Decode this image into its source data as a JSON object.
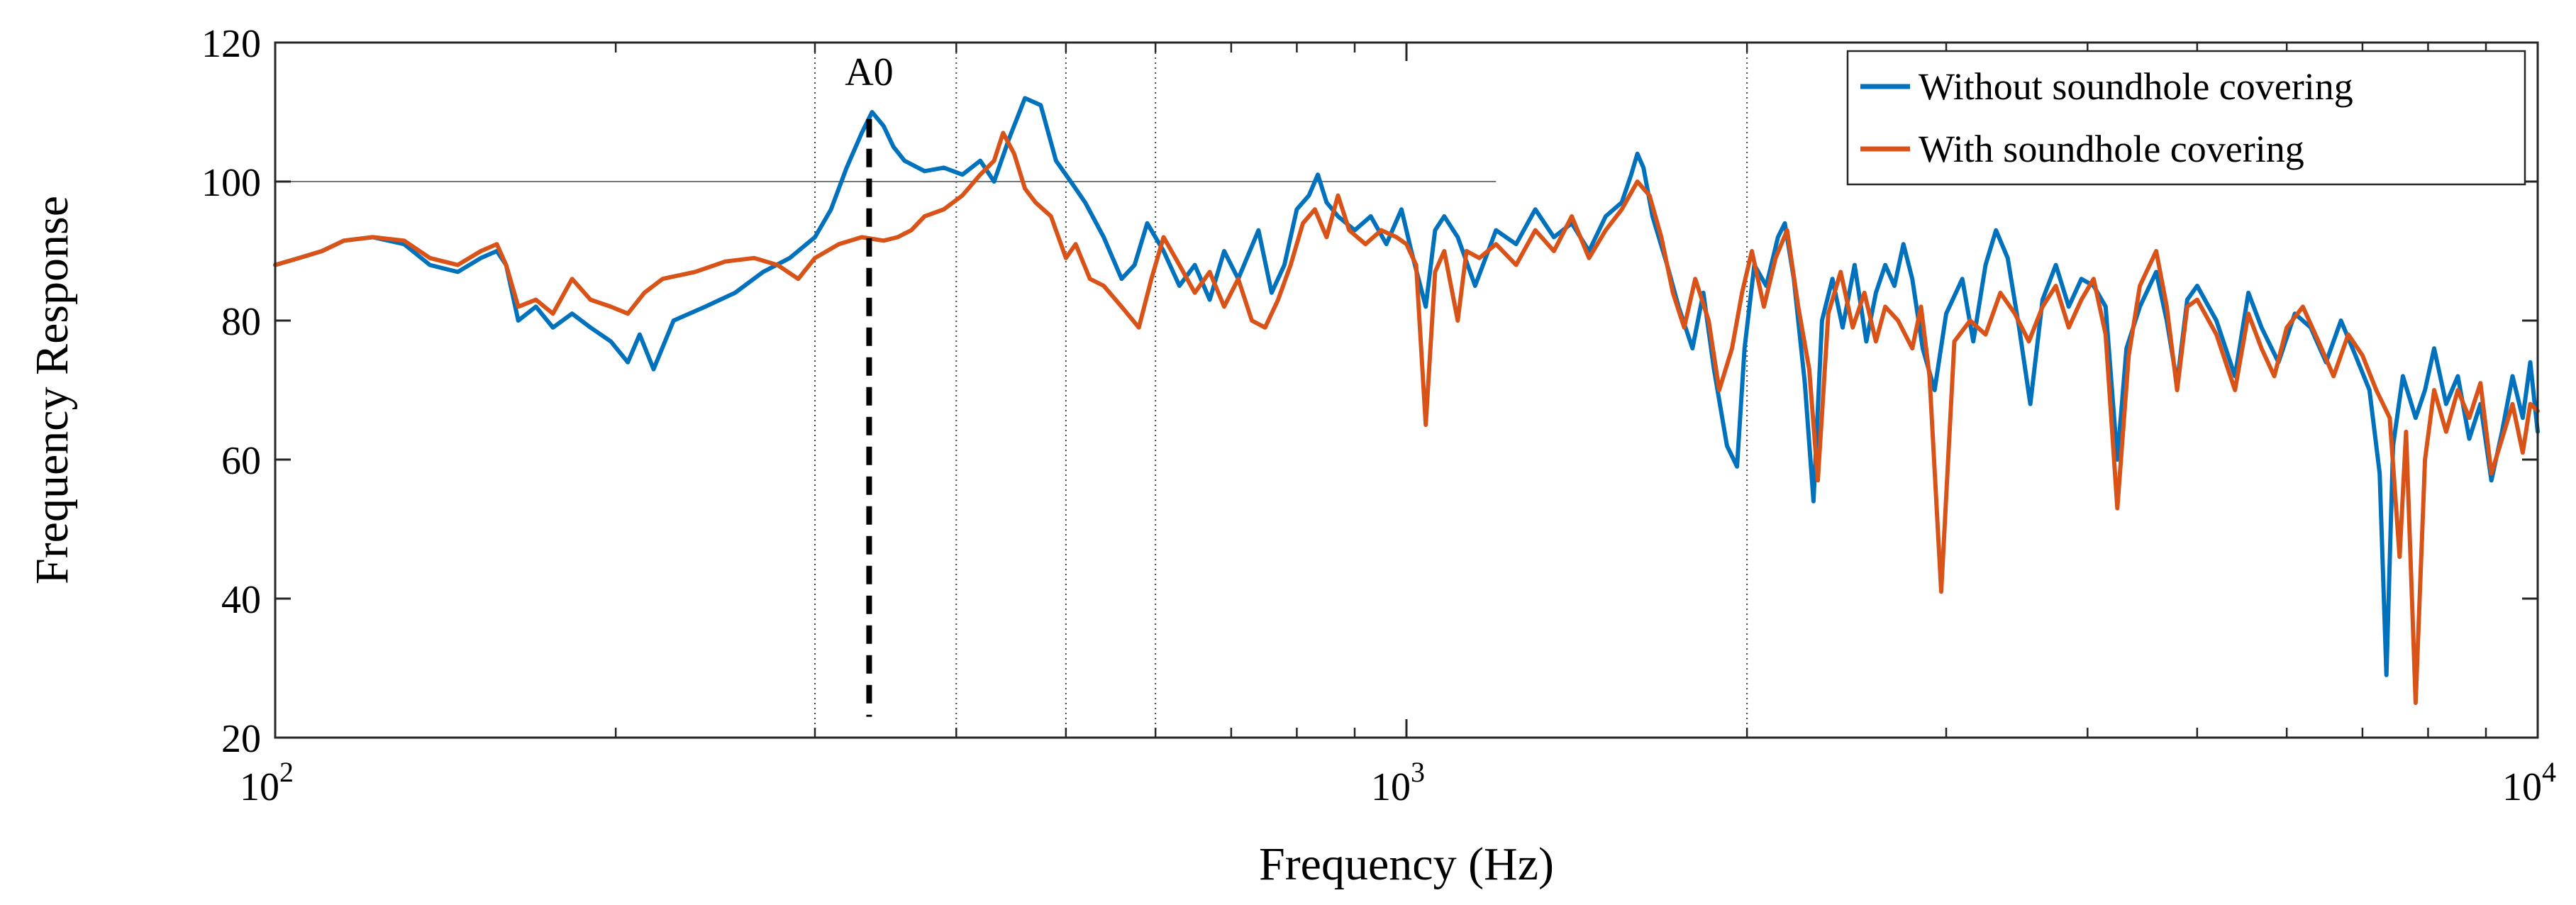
{
  "chart_data": {
    "type": "line",
    "title": "",
    "xlabel": "Frequency (Hz)",
    "ylabel": "Frequency Response",
    "xscale": "log",
    "xlim": [
      100,
      10000
    ],
    "ylim": [
      20,
      120
    ],
    "grid": false,
    "legend_position": "top-right",
    "x_ticks": [
      {
        "value": 100,
        "base": "10",
        "exp": "2"
      },
      {
        "value": 1000,
        "base": "10",
        "exp": "3"
      },
      {
        "value": 10000,
        "base": "10",
        "exp": "4"
      }
    ],
    "y_ticks": [
      {
        "value": 20,
        "label": "20"
      },
      {
        "value": 40,
        "label": "40"
      },
      {
        "value": 60,
        "label": "60"
      },
      {
        "value": 80,
        "label": "80"
      },
      {
        "value": 100,
        "label": "100"
      },
      {
        "value": 120,
        "label": "120"
      }
    ],
    "reference_lines": {
      "vertical_dotted_x": [
        300,
        400,
        500,
        600,
        2000
      ],
      "horizontal_y": 100,
      "horizontal_x_range": [
        100,
        1200
      ]
    },
    "annotation": {
      "label": "A0",
      "x": 335,
      "y_top": 109,
      "y_bottom": 23
    },
    "series": [
      {
        "name": "Without soundhole covering",
        "color": "#0072BD",
        "points": [
          [
            100,
            88
          ],
          [
            105,
            89
          ],
          [
            110,
            90
          ],
          [
            115,
            91.5
          ],
          [
            122,
            92
          ],
          [
            130,
            91
          ],
          [
            137,
            88
          ],
          [
            145,
            87
          ],
          [
            152,
            89
          ],
          [
            157,
            90
          ],
          [
            160,
            88
          ],
          [
            164,
            80
          ],
          [
            170,
            82
          ],
          [
            176,
            79
          ],
          [
            183,
            81
          ],
          [
            190,
            79
          ],
          [
            198,
            77
          ],
          [
            205,
            74
          ],
          [
            210,
            78
          ],
          [
            216,
            73
          ],
          [
            225,
            80
          ],
          [
            240,
            82
          ],
          [
            255,
            84
          ],
          [
            270,
            87
          ],
          [
            285,
            89
          ],
          [
            300,
            92
          ],
          [
            310,
            96
          ],
          [
            320,
            102
          ],
          [
            330,
            107
          ],
          [
            337,
            110
          ],
          [
            345,
            108
          ],
          [
            352,
            105
          ],
          [
            360,
            103
          ],
          [
            375,
            101.5
          ],
          [
            390,
            102
          ],
          [
            405,
            101
          ],
          [
            420,
            103
          ],
          [
            432,
            100
          ],
          [
            445,
            106
          ],
          [
            460,
            112
          ],
          [
            475,
            111
          ],
          [
            490,
            103
          ],
          [
            505,
            100
          ],
          [
            520,
            97
          ],
          [
            540,
            92
          ],
          [
            560,
            86
          ],
          [
            575,
            88
          ],
          [
            590,
            94
          ],
          [
            610,
            90
          ],
          [
            630,
            85
          ],
          [
            650,
            88
          ],
          [
            670,
            83
          ],
          [
            690,
            90
          ],
          [
            710,
            86
          ],
          [
            740,
            93
          ],
          [
            760,
            84
          ],
          [
            780,
            88
          ],
          [
            800,
            96
          ],
          [
            820,
            98
          ],
          [
            835,
            101
          ],
          [
            850,
            97
          ],
          [
            870,
            95
          ],
          [
            900,
            93
          ],
          [
            930,
            95
          ],
          [
            960,
            91
          ],
          [
            990,
            96
          ],
          [
            1010,
            90
          ],
          [
            1040,
            82
          ],
          [
            1060,
            93
          ],
          [
            1080,
            95
          ],
          [
            1110,
            92
          ],
          [
            1150,
            85
          ],
          [
            1200,
            93
          ],
          [
            1250,
            91
          ],
          [
            1300,
            96
          ],
          [
            1350,
            92
          ],
          [
            1400,
            94
          ],
          [
            1450,
            90
          ],
          [
            1500,
            95
          ],
          [
            1550,
            97
          ],
          [
            1580,
            101
          ],
          [
            1600,
            104
          ],
          [
            1620,
            102
          ],
          [
            1650,
            95
          ],
          [
            1700,
            88
          ],
          [
            1740,
            82
          ],
          [
            1790,
            76
          ],
          [
            1830,
            84
          ],
          [
            1870,
            73
          ],
          [
            1920,
            62
          ],
          [
            1960,
            59
          ],
          [
            1990,
            76
          ],
          [
            2030,
            88
          ],
          [
            2080,
            85
          ],
          [
            2130,
            92
          ],
          [
            2160,
            94
          ],
          [
            2200,
            86
          ],
          [
            2250,
            71
          ],
          [
            2290,
            54
          ],
          [
            2330,
            80
          ],
          [
            2380,
            86
          ],
          [
            2430,
            79
          ],
          [
            2490,
            88
          ],
          [
            2550,
            77
          ],
          [
            2600,
            84
          ],
          [
            2650,
            88
          ],
          [
            2700,
            85
          ],
          [
            2750,
            91
          ],
          [
            2800,
            86
          ],
          [
            2860,
            76
          ],
          [
            2930,
            70
          ],
          [
            3000,
            81
          ],
          [
            3100,
            86
          ],
          [
            3170,
            77
          ],
          [
            3250,
            88
          ],
          [
            3320,
            93
          ],
          [
            3400,
            89
          ],
          [
            3480,
            79
          ],
          [
            3560,
            68
          ],
          [
            3650,
            83
          ],
          [
            3750,
            88
          ],
          [
            3850,
            82
          ],
          [
            3950,
            86
          ],
          [
            4050,
            85
          ],
          [
            4150,
            82
          ],
          [
            4250,
            60
          ],
          [
            4330,
            76
          ],
          [
            4450,
            82
          ],
          [
            4600,
            87
          ],
          [
            4700,
            80
          ],
          [
            4800,
            71
          ],
          [
            4900,
            83
          ],
          [
            5000,
            85
          ],
          [
            5200,
            80
          ],
          [
            5400,
            72
          ],
          [
            5550,
            84
          ],
          [
            5700,
            79
          ],
          [
            5900,
            74
          ],
          [
            6100,
            81
          ],
          [
            6300,
            79
          ],
          [
            6500,
            74
          ],
          [
            6700,
            80
          ],
          [
            6900,
            75
          ],
          [
            7100,
            70
          ],
          [
            7250,
            58
          ],
          [
            7350,
            29
          ],
          [
            7450,
            62
          ],
          [
            7600,
            72
          ],
          [
            7800,
            66
          ],
          [
            7950,
            70
          ],
          [
            8100,
            76
          ],
          [
            8300,
            68
          ],
          [
            8500,
            72
          ],
          [
            8700,
            63
          ],
          [
            8900,
            68
          ],
          [
            9100,
            57
          ],
          [
            9300,
            64
          ],
          [
            9500,
            72
          ],
          [
            9700,
            66
          ],
          [
            9850,
            74
          ],
          [
            10000,
            64
          ]
        ]
      },
      {
        "name": "With soundhole covering",
        "color": "#D95319",
        "points": [
          [
            100,
            88
          ],
          [
            105,
            89
          ],
          [
            110,
            90
          ],
          [
            115,
            91.5
          ],
          [
            122,
            92
          ],
          [
            130,
            91.5
          ],
          [
            137,
            89
          ],
          [
            145,
            88
          ],
          [
            152,
            90
          ],
          [
            157,
            91
          ],
          [
            160,
            88
          ],
          [
            164,
            82
          ],
          [
            170,
            83
          ],
          [
            176,
            81
          ],
          [
            183,
            86
          ],
          [
            190,
            83
          ],
          [
            198,
            82
          ],
          [
            205,
            81
          ],
          [
            212,
            84
          ],
          [
            220,
            86
          ],
          [
            235,
            87
          ],
          [
            250,
            88.5
          ],
          [
            265,
            89
          ],
          [
            278,
            88
          ],
          [
            290,
            86
          ],
          [
            300,
            89
          ],
          [
            315,
            91
          ],
          [
            330,
            92
          ],
          [
            345,
            91.5
          ],
          [
            355,
            92
          ],
          [
            365,
            93
          ],
          [
            375,
            95
          ],
          [
            390,
            96
          ],
          [
            405,
            98
          ],
          [
            420,
            101
          ],
          [
            432,
            103
          ],
          [
            440,
            107
          ],
          [
            450,
            104
          ],
          [
            460,
            99
          ],
          [
            470,
            97
          ],
          [
            485,
            95
          ],
          [
            500,
            89
          ],
          [
            510,
            91
          ],
          [
            525,
            86
          ],
          [
            540,
            85
          ],
          [
            560,
            82
          ],
          [
            580,
            79
          ],
          [
            595,
            86
          ],
          [
            610,
            92
          ],
          [
            630,
            88
          ],
          [
            650,
            84
          ],
          [
            670,
            87
          ],
          [
            690,
            82
          ],
          [
            710,
            86
          ],
          [
            730,
            80
          ],
          [
            750,
            79
          ],
          [
            770,
            83
          ],
          [
            790,
            88
          ],
          [
            810,
            94
          ],
          [
            830,
            96
          ],
          [
            850,
            92
          ],
          [
            870,
            98
          ],
          [
            890,
            93
          ],
          [
            920,
            91
          ],
          [
            950,
            93
          ],
          [
            980,
            92
          ],
          [
            1000,
            91
          ],
          [
            1020,
            88
          ],
          [
            1040,
            65
          ],
          [
            1060,
            87
          ],
          [
            1080,
            90
          ],
          [
            1110,
            80
          ],
          [
            1130,
            90
          ],
          [
            1160,
            89
          ],
          [
            1200,
            91
          ],
          [
            1250,
            88
          ],
          [
            1300,
            93
          ],
          [
            1350,
            90
          ],
          [
            1400,
            95
          ],
          [
            1450,
            89
          ],
          [
            1500,
            93
          ],
          [
            1550,
            96
          ],
          [
            1600,
            100
          ],
          [
            1640,
            98
          ],
          [
            1680,
            92
          ],
          [
            1720,
            84
          ],
          [
            1760,
            79
          ],
          [
            1800,
            86
          ],
          [
            1850,
            80
          ],
          [
            1890,
            70
          ],
          [
            1940,
            76
          ],
          [
            1980,
            84
          ],
          [
            2020,
            90
          ],
          [
            2070,
            82
          ],
          [
            2120,
            89
          ],
          [
            2170,
            93
          ],
          [
            2220,
            82
          ],
          [
            2270,
            73
          ],
          [
            2310,
            57
          ],
          [
            2360,
            81
          ],
          [
            2420,
            87
          ],
          [
            2480,
            79
          ],
          [
            2540,
            84
          ],
          [
            2600,
            77
          ],
          [
            2650,
            82
          ],
          [
            2720,
            80
          ],
          [
            2800,
            76
          ],
          [
            2850,
            82
          ],
          [
            2900,
            72
          ],
          [
            2970,
            41
          ],
          [
            3050,
            77
          ],
          [
            3150,
            80
          ],
          [
            3250,
            78
          ],
          [
            3350,
            84
          ],
          [
            3450,
            81
          ],
          [
            3550,
            77
          ],
          [
            3650,
            82
          ],
          [
            3750,
            85
          ],
          [
            3850,
            79
          ],
          [
            3950,
            83
          ],
          [
            4050,
            86
          ],
          [
            4150,
            78
          ],
          [
            4250,
            53
          ],
          [
            4350,
            75
          ],
          [
            4450,
            85
          ],
          [
            4600,
            90
          ],
          [
            4700,
            82
          ],
          [
            4800,
            70
          ],
          [
            4900,
            82
          ],
          [
            5000,
            83
          ],
          [
            5200,
            78
          ],
          [
            5400,
            70
          ],
          [
            5550,
            81
          ],
          [
            5700,
            76
          ],
          [
            5850,
            72
          ],
          [
            6000,
            79
          ],
          [
            6200,
            82
          ],
          [
            6400,
            77
          ],
          [
            6600,
            72
          ],
          [
            6800,
            78
          ],
          [
            7000,
            75
          ],
          [
            7200,
            70
          ],
          [
            7400,
            66
          ],
          [
            7550,
            46
          ],
          [
            7650,
            64
          ],
          [
            7800,
            25
          ],
          [
            7950,
            60
          ],
          [
            8100,
            70
          ],
          [
            8300,
            64
          ],
          [
            8500,
            70
          ],
          [
            8700,
            66
          ],
          [
            8900,
            71
          ],
          [
            9100,
            58
          ],
          [
            9300,
            63
          ],
          [
            9500,
            68
          ],
          [
            9700,
            61
          ],
          [
            9850,
            68
          ],
          [
            10000,
            67
          ]
        ]
      }
    ]
  }
}
